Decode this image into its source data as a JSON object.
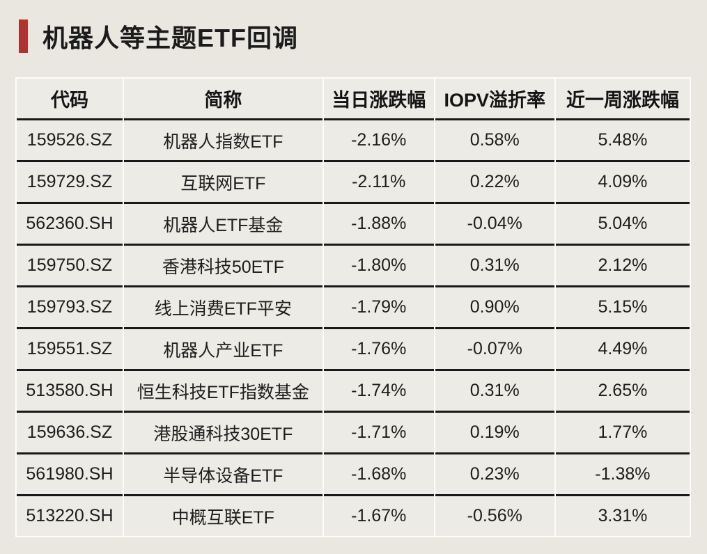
{
  "title": "机器人等主题ETF回调",
  "accent_color": "#b13331",
  "colors": {
    "page_background": "#eae7e1",
    "cell_background": "#edebe5",
    "gridline": "#fdfcfa",
    "row_separator": "#191919",
    "text": "#1d1d1d"
  },
  "table": {
    "columns": [
      "代码",
      "简称",
      "当日涨跌幅",
      "IOPV溢折率",
      "近一周涨跌幅"
    ],
    "rows": [
      {
        "code": "159526.SZ",
        "name": "机器人指数ETF",
        "daily_change": "-2.16%",
        "iopv_premium": "0.58%",
        "weekly_change": "5.48%"
      },
      {
        "code": "159729.SZ",
        "name": "互联网ETF",
        "daily_change": "-2.11%",
        "iopv_premium": "0.22%",
        "weekly_change": "4.09%"
      },
      {
        "code": "562360.SH",
        "name": "机器人ETF基金",
        "daily_change": "-1.88%",
        "iopv_premium": "-0.04%",
        "weekly_change": "5.04%"
      },
      {
        "code": "159750.SZ",
        "name": "香港科技50ETF",
        "daily_change": "-1.80%",
        "iopv_premium": "0.31%",
        "weekly_change": "2.12%"
      },
      {
        "code": "159793.SZ",
        "name": "线上消费ETF平安",
        "daily_change": "-1.79%",
        "iopv_premium": "0.90%",
        "weekly_change": "5.15%"
      },
      {
        "code": "159551.SZ",
        "name": "机器人产业ETF",
        "daily_change": "-1.76%",
        "iopv_premium": "-0.07%",
        "weekly_change": "4.49%"
      },
      {
        "code": "513580.SH",
        "name": "恒生科技ETF指数基金",
        "daily_change": "-1.74%",
        "iopv_premium": "0.31%",
        "weekly_change": "2.65%"
      },
      {
        "code": "159636.SZ",
        "name": "港股通科技30ETF",
        "daily_change": "-1.71%",
        "iopv_premium": "0.19%",
        "weekly_change": "1.77%"
      },
      {
        "code": "561980.SH",
        "name": "半导体设备ETF",
        "daily_change": "-1.68%",
        "iopv_premium": "0.23%",
        "weekly_change": "-1.38%"
      },
      {
        "code": "513220.SH",
        "name": "中概互联ETF",
        "daily_change": "-1.67%",
        "iopv_premium": "-0.56%",
        "weekly_change": "3.31%"
      }
    ]
  },
  "chart_data": {
    "type": "table",
    "title": "机器人等主题ETF回调",
    "columns": [
      "代码",
      "简称",
      "当日涨跌幅",
      "IOPV溢折率",
      "近一周涨跌幅"
    ],
    "rows": [
      [
        "159526.SZ",
        "机器人指数ETF",
        "-2.16%",
        "0.58%",
        "5.48%"
      ],
      [
        "159729.SZ",
        "互联网ETF",
        "-2.11%",
        "0.22%",
        "4.09%"
      ],
      [
        "562360.SH",
        "机器人ETF基金",
        "-1.88%",
        "-0.04%",
        "5.04%"
      ],
      [
        "159750.SZ",
        "香港科技50ETF",
        "-1.80%",
        "0.31%",
        "2.12%"
      ],
      [
        "159793.SZ",
        "线上消费ETF平安",
        "-1.79%",
        "0.90%",
        "5.15%"
      ],
      [
        "159551.SZ",
        "机器人产业ETF",
        "-1.76%",
        "-0.07%",
        "4.49%"
      ],
      [
        "513580.SH",
        "恒生科技ETF指数基金",
        "-1.74%",
        "0.31%",
        "2.65%"
      ],
      [
        "159636.SZ",
        "港股通科技30ETF",
        "-1.71%",
        "0.19%",
        "1.77%"
      ],
      [
        "561980.SH",
        "半导体设备ETF",
        "-1.68%",
        "0.23%",
        "-1.38%"
      ],
      [
        "513220.SH",
        "中概互联ETF",
        "-1.67%",
        "-0.56%",
        "3.31%"
      ]
    ]
  }
}
